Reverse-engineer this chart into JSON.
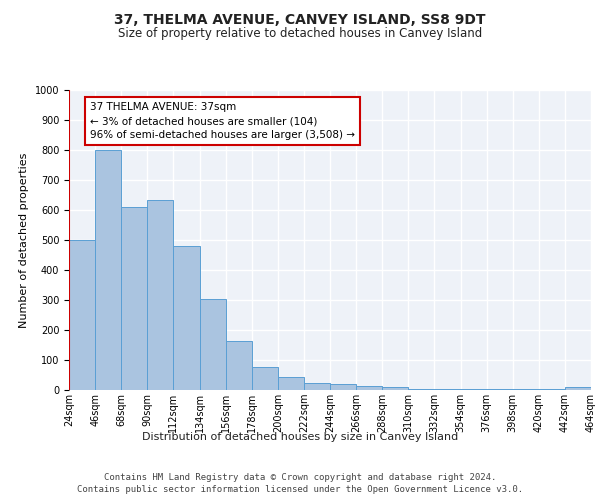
{
  "title": "37, THELMA AVENUE, CANVEY ISLAND, SS8 9DT",
  "subtitle": "Size of property relative to detached houses in Canvey Island",
  "xlabel": "Distribution of detached houses by size in Canvey Island",
  "ylabel": "Number of detached properties",
  "bar_values": [
    500,
    800,
    610,
    635,
    480,
    302,
    163,
    78,
    45,
    23,
    20,
    15,
    10,
    5,
    5,
    2,
    2,
    2,
    2,
    10
  ],
  "bar_labels": [
    "24sqm",
    "46sqm",
    "68sqm",
    "90sqm",
    "112sqm",
    "134sqm",
    "156sqm",
    "178sqm",
    "200sqm",
    "222sqm",
    "244sqm",
    "266sqm",
    "288sqm",
    "310sqm",
    "332sqm",
    "354sqm",
    "376sqm",
    "398sqm",
    "420sqm",
    "442sqm",
    "464sqm"
  ],
  "bar_color": "#aac4e0",
  "bar_edge_color": "#5a9fd4",
  "annotation_box_color": "#cc0000",
  "annotation_text": "37 THELMA AVENUE: 37sqm\n← 3% of detached houses are smaller (104)\n96% of semi-detached houses are larger (3,508) →",
  "ylim": [
    0,
    1000
  ],
  "yticks": [
    0,
    100,
    200,
    300,
    400,
    500,
    600,
    700,
    800,
    900,
    1000
  ],
  "footer_line1": "Contains HM Land Registry data © Crown copyright and database right 2024.",
  "footer_line2": "Contains public sector information licensed under the Open Government Licence v3.0.",
  "bg_color": "#eef2f8",
  "grid_color": "#ffffff",
  "title_fontsize": 10,
  "subtitle_fontsize": 8.5,
  "ylabel_fontsize": 8,
  "xlabel_fontsize": 8,
  "tick_fontsize": 7,
  "footer_fontsize": 6.5,
  "annotation_fontsize": 7.5
}
